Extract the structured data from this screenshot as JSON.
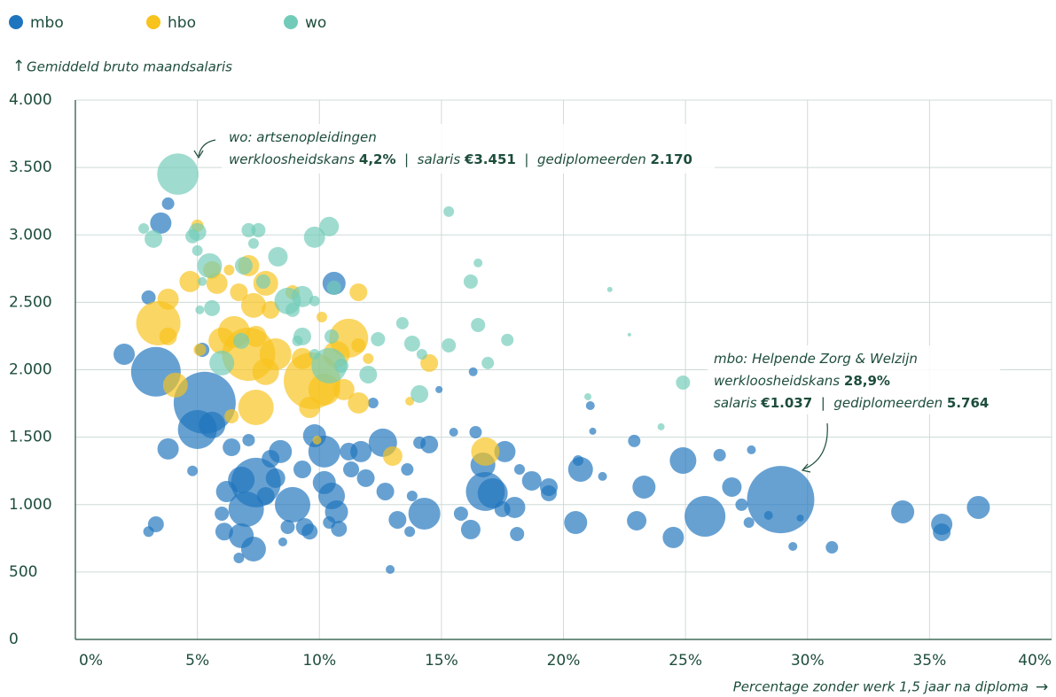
{
  "chart_data": {
    "type": "bubble",
    "y_label": "Gemiddeld bruto maandsalaris",
    "x_label": "Percentage zonder werk 1,5 jaar na diploma",
    "xlim": [
      0,
      40
    ],
    "xticks": [
      {
        "value": 0,
        "label": "0%"
      },
      {
        "value": 5,
        "label": "5%"
      },
      {
        "value": 10,
        "label": "10%"
      },
      {
        "value": 15,
        "label": "15%"
      },
      {
        "value": 20,
        "label": "20%"
      },
      {
        "value": 25,
        "label": "25%"
      },
      {
        "value": 30,
        "label": "30%"
      },
      {
        "value": 35,
        "label": "35%"
      },
      {
        "value": 40,
        "label": "40%"
      }
    ],
    "ylim": [
      0,
      4000
    ],
    "yticks": [
      0,
      500,
      {
        "value": 1000,
        "label": "1.000"
      },
      {
        "value": 1500,
        "label": "1.500"
      },
      {
        "value": 2000,
        "label": "2.000"
      },
      {
        "value": 2500,
        "label": "2.500"
      },
      {
        "value": 3000,
        "label": "3.000"
      },
      {
        "value": 3500,
        "label": "3.500"
      },
      {
        "value": 4000,
        "label": "4.000"
      }
    ],
    "grid": true,
    "legend": "top-left",
    "series": [
      {
        "name": "mbo",
        "color": "#1f75bd",
        "x": [
          2.0,
          3.3,
          5.3,
          5.0,
          5.6,
          3.8,
          3.5,
          3.8,
          3.0,
          3.3,
          3.0,
          4.8,
          5.2,
          6.4,
          6.2,
          6.0,
          6.1,
          6.8,
          7.0,
          6.8,
          7.3,
          7.4,
          6.7,
          7.1,
          7.8,
          8.0,
          8.4,
          8.2,
          8.9,
          9.3,
          9.4,
          9.6,
          8.7,
          8.5,
          9.8,
          10.2,
          10.2,
          10.5,
          10.7,
          10.8,
          10.4,
          10.6,
          11.2,
          11.3,
          11.7,
          11.9,
          12.2,
          12.7,
          12.6,
          12.9,
          13.2,
          13.6,
          13.7,
          13.8,
          14.3,
          14.5,
          14.1,
          14.9,
          15.5,
          15.8,
          16.2,
          16.3,
          16.4,
          16.7,
          16.8,
          17.1,
          17.6,
          17.5,
          18.0,
          18.1,
          18.2,
          18.7,
          19.4,
          19.4,
          20.5,
          20.7,
          20.6,
          21.1,
          21.2,
          21.6,
          22.9,
          23.0,
          23.3,
          24.5,
          24.9,
          25.8,
          26.4,
          26.9,
          27.3,
          27.7,
          27.6,
          28.4,
          28.9,
          29.7,
          29.4,
          31.0,
          33.9,
          35.5,
          35.5,
          37.0
        ],
        "values": [
          2115,
          1985,
          1755,
          1557,
          1590,
          1413,
          3088,
          3232,
          2536,
          854,
          800,
          1250,
          2148,
          1425,
          1097,
          933,
          800,
          1183,
          966,
          769,
          670,
          1163,
          604,
          1478,
          1064,
          1340,
          1393,
          1196,
          999,
          1261,
          834,
          800,
          834,
          723,
          1511,
          1393,
          1163,
          1064,
          946,
          821,
          867,
          2641,
          1393,
          1261,
          1393,
          1196,
          1754,
          1097,
          1459,
          519,
          887,
          1261,
          800,
          1064,
          933,
          1446,
          1459,
          1853,
          1537,
          933,
          815,
          1985,
          1537,
          1294,
          1097,
          1084,
          1393,
          966,
          979,
          782,
          1261,
          1176,
          1130,
          1084,
          867,
          1261,
          1327,
          1734,
          1544,
          1209,
          1472,
          880,
          1130,
          756,
          1327,
          913,
          1367,
          1130,
          999,
          1406,
          867,
          920,
          1037,
          900,
          690,
          683,
          946,
          854,
          795,
          979
        ],
        "sizes": [
          576,
          3136,
          4900,
          1936,
          900,
          576,
          576,
          196,
          256,
          324,
          144,
          144,
          256,
          400,
          576,
          256,
          400,
          900,
          1600,
          784,
          784,
          3136,
          144,
          196,
          400,
          400,
          676,
          484,
          1600,
          400,
          400,
          324,
          256,
          100,
          676,
          1296,
          676,
          900,
          676,
          324,
          196,
          676,
          400,
          324,
          576,
          400,
          144,
          400,
          1024,
          100,
          400,
          196,
          144,
          144,
          1296,
          400,
          196,
          64,
          100,
          256,
          484,
          100,
          196,
          784,
          1936,
          1156,
          576,
          324,
          576,
          256,
          144,
          484,
          400,
          324,
          676,
          784,
          144,
          100,
          64,
          100,
          196,
          484,
          676,
          576,
          900,
          2116,
          196,
          484,
          196,
          100,
          144,
          100,
          5764,
          64,
          100,
          196,
          676,
          576,
          400,
          676
        ]
      },
      {
        "name": "hbo",
        "color": "#f7c31c",
        "x": [
          5.0,
          4.7,
          3.8,
          3.4,
          3.8,
          4.1,
          5.6,
          5.8,
          6.3,
          7.1,
          6.7,
          7.8,
          7.3,
          6.0,
          6.5,
          7.1,
          7.4,
          8.2,
          7.8,
          7.4,
          8.0,
          8.9,
          9.3,
          9.7,
          9.6,
          10.2,
          11.0,
          11.2,
          10.7,
          11.6,
          11.6,
          11.6,
          12.0,
          10.1,
          13.0,
          13.7,
          14.5,
          9.9,
          16.8,
          6.4,
          5.1
        ],
        "values": [
          3068,
          2654,
          2523,
          2345,
          2247,
          1886,
          2740,
          2641,
          2740,
          2772,
          2575,
          2641,
          2477,
          2214,
          2280,
          2115,
          2247,
          2115,
          1985,
          1721,
          2444,
          2575,
          2083,
          1918,
          1721,
          1853,
          1853,
          2234,
          2115,
          2181,
          1754,
          2575,
          2083,
          2391,
          1360,
          1767,
          2050,
          1478,
          1393,
          1655,
          2148
        ],
        "sizes": [
          196,
          576,
          576,
          2500,
          400,
          784,
          400,
          576,
          144,
          576,
          400,
          784,
          784,
          900,
          1296,
          3600,
          576,
          1296,
          900,
          1600,
          400,
          256,
          576,
          4096,
          576,
          1296,
          576,
          1936,
          900,
          256,
          576,
          400,
          144,
          144,
          484,
          100,
          400,
          100,
          1024,
          256,
          196
        ]
      },
      {
        "name": "wo",
        "color": "#72cbb8",
        "x": [
          4.2,
          2.8,
          3.2,
          4.8,
          5.0,
          5.0,
          5.5,
          5.2,
          5.6,
          5.1,
          7.1,
          7.5,
          7.3,
          6.9,
          8.3,
          7.7,
          6.8,
          6.0,
          8.7,
          9.3,
          8.9,
          9.8,
          10.4,
          10.6,
          10.5,
          9.3,
          9.1,
          10.4,
          10.9,
          12.0,
          12.4,
          13.4,
          13.8,
          14.1,
          14.2,
          15.3,
          15.3,
          16.2,
          16.5,
          16.5,
          16.9,
          17.7,
          21.0,
          21.9,
          22.7,
          24.0,
          24.9,
          9.8,
          9.8
        ],
        "values": [
          3451,
          3048,
          2970,
          2990,
          3022,
          2884,
          2772,
          2654,
          2457,
          2444,
          3035,
          3035,
          2937,
          2772,
          2838,
          2654,
          2214,
          2050,
          2510,
          2543,
          2444,
          2983,
          3062,
          2608,
          2247,
          2247,
          2214,
          2030,
          2030,
          1964,
          2227,
          2345,
          2194,
          1820,
          2115,
          2181,
          3173,
          2654,
          2792,
          2332,
          2050,
          2221,
          1800,
          2595,
          2260,
          1577,
          1905,
          2115,
          2510
        ],
        "sizes": [
          2170,
          144,
          400,
          256,
          400,
          144,
          784,
          100,
          324,
          100,
          256,
          256,
          144,
          400,
          484,
          256,
          324,
          784,
          900,
          576,
          256,
          576,
          484,
          256,
          256,
          400,
          144,
          1600,
          256,
          400,
          256,
          196,
          324,
          400,
          144,
          256,
          144,
          256,
          100,
          256,
          196,
          196,
          64,
          36,
          16,
          64,
          256,
          144,
          144
        ]
      }
    ],
    "annotations": [
      {
        "lines": [
          [
            {
              "text": "wo: artsenopleidingen"
            }
          ],
          [
            {
              "text": "werkloosheidskans "
            },
            {
              "text": "4,2%",
              "bold": true
            },
            {
              "text": "  |  salaris "
            },
            {
              "text": "€3.451",
              "bold": true
            },
            {
              "text": "  |  gediplomeerden "
            },
            {
              "text": "2.170",
              "bold": true
            }
          ]
        ]
      },
      {
        "lines": [
          [
            {
              "text": "mbo: Helpende Zorg & Welzijn"
            }
          ],
          [
            {
              "text": "werkloosheidskans "
            },
            {
              "text": "28,9%",
              "bold": true
            }
          ],
          [
            {
              "text": "salaris "
            },
            {
              "text": "€1.037",
              "bold": true
            },
            {
              "text": "  |  gediplomeerden "
            },
            {
              "text": "5.764",
              "bold": true
            }
          ]
        ]
      }
    ]
  }
}
